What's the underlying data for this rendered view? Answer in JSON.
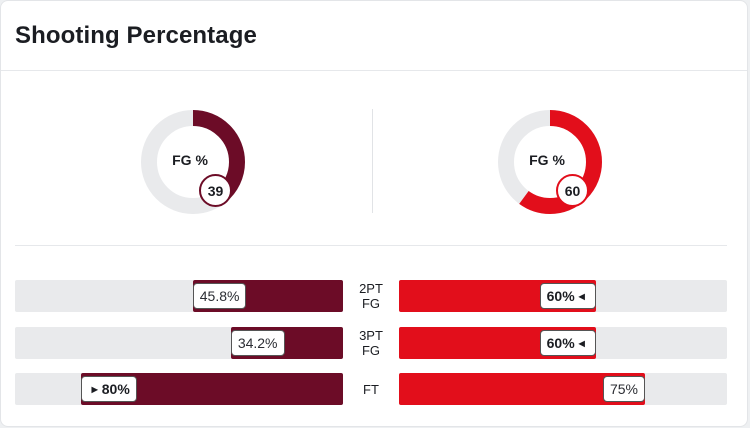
{
  "header": {
    "title": "Shooting Percentage"
  },
  "colors": {
    "left": "#6c0c27",
    "right": "#e20e1b",
    "track": "#e9eaec"
  },
  "donuts": [
    {
      "label": "FG %",
      "value": 39,
      "value_text": "39",
      "color": "#6c0c27"
    },
    {
      "label": "FG %",
      "value": 60,
      "value_text": "60",
      "color": "#e20e1b"
    }
  ],
  "stats": [
    {
      "label": "2PT FG",
      "left": {
        "value": 45.8,
        "text": "45.8%",
        "bold": false,
        "caret": false
      },
      "right": {
        "value": 60,
        "text": "60%",
        "bold": true,
        "caret": true
      }
    },
    {
      "label": "3PT FG",
      "left": {
        "value": 34.2,
        "text": "34.2%",
        "bold": false,
        "caret": false
      },
      "right": {
        "value": 60,
        "text": "60%",
        "bold": true,
        "caret": true
      }
    },
    {
      "label": "FT",
      "left": {
        "value": 80,
        "text": "80%",
        "bold": true,
        "caret": true
      },
      "right": {
        "value": 75,
        "text": "75%",
        "bold": false,
        "caret": false
      }
    }
  ]
}
